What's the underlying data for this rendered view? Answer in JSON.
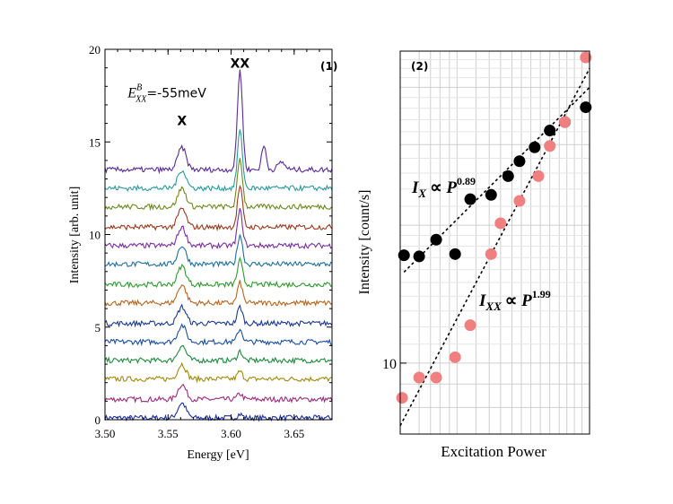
{
  "chart_data": [
    {
      "type": "line",
      "panel_tag": "(1)",
      "xlabel": "Energy [eV]",
      "ylabel": "Intensity [arb. unit]",
      "xlim": [
        3.5,
        3.68
      ],
      "ylim": [
        0,
        20
      ],
      "x_ticks": [
        "3.50",
        "3.55",
        "3.60",
        "3.65"
      ],
      "x_tick_values": [
        3.5,
        3.55,
        3.6,
        3.65
      ],
      "y_ticks": [
        "0",
        "5",
        "10",
        "15",
        "20"
      ],
      "y_tick_values": [
        0,
        5,
        10,
        15,
        20
      ],
      "grid": false,
      "annotation": {
        "symbol": "E",
        "superscript": "B",
        "subscript": "XX",
        "value": "=-55meV",
        "x": 3.518,
        "y": 17.4
      },
      "peak_labels": [
        {
          "text": "X",
          "x": 3.561,
          "y": 15.9
        },
        {
          "text": "XX",
          "x": 3.607,
          "y": 19.0
        }
      ],
      "x_peak_energy": 3.561,
      "xx_peak_energy": 3.607,
      "series": [
        {
          "offset": 0.1,
          "x_amp": 0.8,
          "xx_amp": 0.2,
          "color": "#1b2fa8"
        },
        {
          "offset": 1.1,
          "x_amp": 0.8,
          "xx_amp": 0.3,
          "color": "#9b2b7d"
        },
        {
          "offset": 2.2,
          "x_amp": 0.8,
          "xx_amp": 0.4,
          "color": "#a08a0e"
        },
        {
          "offset": 3.2,
          "x_amp": 0.8,
          "xx_amp": 0.5,
          "color": "#1f8a3c"
        },
        {
          "offset": 4.2,
          "x_amp": 0.9,
          "xx_amp": 0.7,
          "color": "#1a4fa0"
        },
        {
          "offset": 5.2,
          "x_amp": 0.9,
          "xx_amp": 0.9,
          "color": "#1b3a8f"
        },
        {
          "offset": 6.3,
          "x_amp": 1.0,
          "xx_amp": 1.1,
          "color": "#b5651d"
        },
        {
          "offset": 7.3,
          "x_amp": 1.0,
          "xx_amp": 1.3,
          "color": "#2e9a2e"
        },
        {
          "offset": 8.4,
          "x_amp": 1.0,
          "xx_amp": 1.6,
          "color": "#1e6fa0"
        },
        {
          "offset": 9.4,
          "x_amp": 1.0,
          "xx_amp": 1.9,
          "color": "#7a2fa0"
        },
        {
          "offset": 10.4,
          "x_amp": 1.0,
          "xx_amp": 2.2,
          "color": "#9b3a1e"
        },
        {
          "offset": 11.5,
          "x_amp": 1.0,
          "xx_amp": 2.6,
          "color": "#6b8a1e"
        },
        {
          "offset": 12.5,
          "x_amp": 1.0,
          "xx_amp": 3.1,
          "color": "#2a9a9a"
        },
        {
          "offset": 13.5,
          "x_amp": 1.2,
          "xx_amp": 5.4,
          "color": "#5a2a9a"
        }
      ]
    },
    {
      "type": "scatter",
      "panel_tag": "(2)",
      "xlabel": "Excitation Power",
      "ylabel": "Intensity [count/s]",
      "y_scale": "log",
      "x_scale": "log",
      "x_range": [
        0,
        1
      ],
      "y_range": [
        7,
        48
      ],
      "y_ticks": [
        "10"
      ],
      "y_tick_values": [
        10
      ],
      "grid": true,
      "series": [
        {
          "name": "X",
          "color": "#000000",
          "points": [
            [
              0.02,
              17.2
            ],
            [
              0.1,
              17.1
            ],
            [
              0.19,
              18.6
            ],
            [
              0.29,
              17.3
            ],
            [
              0.37,
              22.8
            ],
            [
              0.48,
              23.3
            ],
            [
              0.57,
              25.6
            ],
            [
              0.63,
              27.6
            ],
            [
              0.71,
              29.6
            ],
            [
              0.79,
              32.2
            ],
            [
              0.87,
              33.6
            ],
            [
              0.98,
              36.2
            ]
          ],
          "fit_label_main": "I",
          "fit_label_sub": "X",
          "fit_label_power": "0.89",
          "fit_line": [
            [
              0.02,
              15.8
            ],
            [
              1.0,
              40.0
            ]
          ]
        },
        {
          "name": "XX",
          "color": "#f08080",
          "points": [
            [
              0.01,
              8.4
            ],
            [
              0.1,
              9.3
            ],
            [
              0.19,
              9.3
            ],
            [
              0.29,
              10.3
            ],
            [
              0.37,
              12.1
            ],
            [
              0.48,
              17.3
            ],
            [
              0.53,
              20.2
            ],
            [
              0.63,
              22.6
            ],
            [
              0.73,
              25.6
            ],
            [
              0.79,
              29.8
            ],
            [
              0.87,
              33.6
            ],
            [
              0.98,
              46.5
            ]
          ],
          "fit_label_main": "I",
          "fit_label_sub": "XX",
          "fit_label_power": "1.99",
          "fit_line": [
            [
              0.0,
              7.3
            ],
            [
              1.0,
              44.0
            ]
          ]
        }
      ]
    }
  ]
}
